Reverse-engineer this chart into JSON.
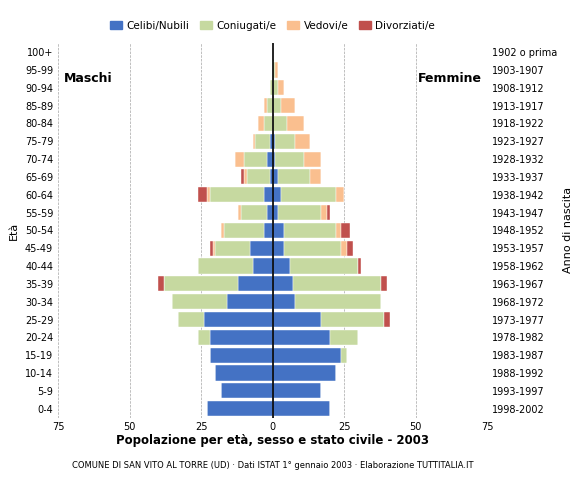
{
  "age_groups": [
    "0-4",
    "5-9",
    "10-14",
    "15-19",
    "20-24",
    "25-29",
    "30-34",
    "35-39",
    "40-44",
    "45-49",
    "50-54",
    "55-59",
    "60-64",
    "65-69",
    "70-74",
    "75-79",
    "80-84",
    "85-89",
    "90-94",
    "95-99",
    "100+"
  ],
  "birth_years": [
    "1998-2002",
    "1993-1997",
    "1988-1992",
    "1983-1987",
    "1978-1982",
    "1973-1977",
    "1968-1972",
    "1963-1967",
    "1958-1962",
    "1953-1957",
    "1948-1952",
    "1943-1947",
    "1938-1942",
    "1933-1937",
    "1928-1932",
    "1923-1927",
    "1918-1922",
    "1913-1917",
    "1908-1912",
    "1903-1907",
    "1902 o prima"
  ],
  "colors": {
    "celibe": "#4472C4",
    "coniugato": "#C6D9A0",
    "vedovo": "#FABF8F",
    "divorziato": "#C0504D"
  },
  "males": {
    "celibe": [
      23,
      18,
      20,
      22,
      22,
      24,
      16,
      12,
      7,
      8,
      3,
      2,
      3,
      1,
      2,
      1,
      0,
      0,
      0,
      0,
      0
    ],
    "coniugato": [
      0,
      0,
      0,
      0,
      4,
      9,
      19,
      26,
      19,
      12,
      14,
      9,
      19,
      8,
      8,
      5,
      3,
      2,
      1,
      0,
      0
    ],
    "vedovo": [
      0,
      0,
      0,
      0,
      0,
      0,
      0,
      0,
      0,
      1,
      1,
      1,
      1,
      1,
      3,
      1,
      2,
      1,
      0,
      0,
      0
    ],
    "divorziato": [
      0,
      0,
      0,
      0,
      0,
      0,
      0,
      2,
      0,
      1,
      0,
      0,
      3,
      1,
      0,
      0,
      0,
      0,
      0,
      0,
      0
    ]
  },
  "females": {
    "celibe": [
      20,
      17,
      22,
      24,
      20,
      17,
      8,
      7,
      6,
      4,
      4,
      2,
      3,
      2,
      1,
      1,
      0,
      0,
      0,
      0,
      0
    ],
    "coniugato": [
      0,
      0,
      0,
      2,
      10,
      22,
      30,
      31,
      24,
      20,
      18,
      15,
      19,
      11,
      10,
      7,
      5,
      3,
      2,
      1,
      0
    ],
    "vedovo": [
      0,
      0,
      0,
      0,
      0,
      0,
      0,
      0,
      0,
      2,
      2,
      2,
      3,
      4,
      6,
      5,
      6,
      5,
      2,
      1,
      0
    ],
    "divorziato": [
      0,
      0,
      0,
      0,
      0,
      2,
      0,
      2,
      1,
      2,
      3,
      1,
      0,
      0,
      0,
      0,
      0,
      0,
      0,
      0,
      0
    ]
  },
  "xlim": 75,
  "title": "Popolazione per età, sesso e stato civile - 2003",
  "subtitle": "COMUNE DI SAN VITO AL TORRE (UD) · Dati ISTAT 1° gennaio 2003 · Elaborazione TUTTITALIA.IT",
  "ylabel_left": "Età",
  "ylabel_right": "Anno di nascita",
  "label_maschi": "Maschi",
  "label_femmine": "Femmine",
  "legend_labels": [
    "Celibi/Nubili",
    "Coniugati/e",
    "Vedovi/e",
    "Divorziati/e"
  ],
  "bg_color": "#FFFFFF",
  "bar_height": 0.85
}
